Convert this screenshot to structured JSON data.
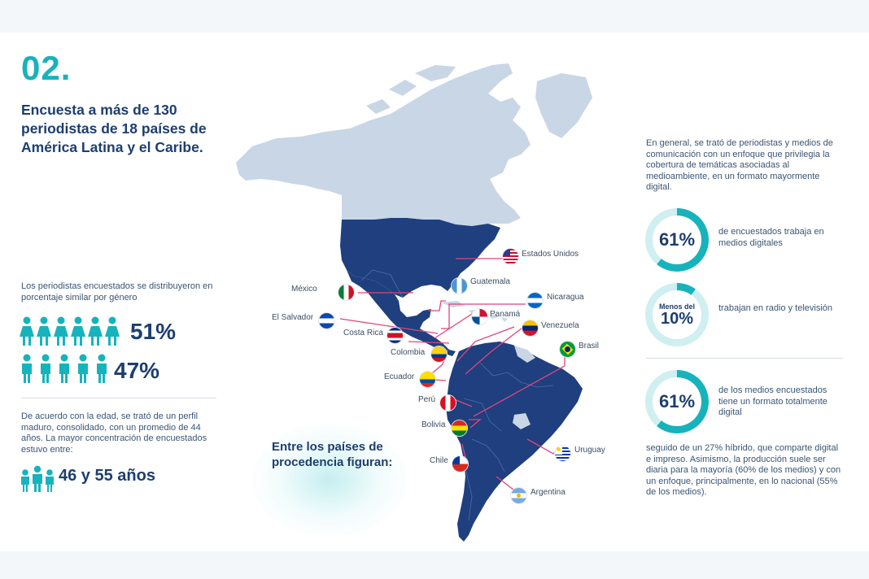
{
  "section_number": "02.",
  "title": "Encuesta a más de 130 periodistas de 18 países de América Latina y el Caribe.",
  "gender": {
    "intro": "Los periodistas encuestados se distribuyeron en porcentaje similar por género",
    "women_pct": "51%",
    "men_pct": "47%"
  },
  "age": {
    "intro": "De acuerdo con la edad, se trató de un perfil maduro, consolidado, con un promedio de 44 años.  La mayor concentración de encuestados estuvo entre:",
    "range": "46 y 55 años"
  },
  "map": {
    "caption": "Entre los países de procedencia figuran:",
    "countries": [
      {
        "name": "Estados Unidos",
        "flag": "us-flag"
      },
      {
        "name": "México",
        "flag": "mexico-flag"
      },
      {
        "name": "Guatemala",
        "flag": "guatemala-flag"
      },
      {
        "name": "Nicaragua",
        "flag": "nicaragua-flag"
      },
      {
        "name": "El Salvador",
        "flag": "el-salvador-flag"
      },
      {
        "name": "Panamá",
        "flag": "panama-flag"
      },
      {
        "name": "Costa Rica",
        "flag": "costa-rica-flag"
      },
      {
        "name": "Venezuela",
        "flag": "venezuela-flag"
      },
      {
        "name": "Colombia",
        "flag": "colombia-flag"
      },
      {
        "name": "Brasil",
        "flag": "brazil-flag"
      },
      {
        "name": "Ecuador",
        "flag": "ecuador-flag"
      },
      {
        "name": "Perú",
        "flag": "peru-flag"
      },
      {
        "name": "Bolivia",
        "flag": "bolivia-flag"
      },
      {
        "name": "Uruguay",
        "flag": "uruguay-flag"
      },
      {
        "name": "Chile",
        "flag": "chile-flag"
      },
      {
        "name": "Argentina",
        "flag": "argentina-flag"
      }
    ]
  },
  "right": {
    "intro": "En general, se trató de periodistas y medios de comunicación con un enfoque que privilegia la cobertura de temáticas asociadas al medioambiente, en un formato mayormente digital.",
    "stat1": {
      "value": "61%",
      "fraction": 0.61,
      "text": "de encuestados trabaja en medios digitales"
    },
    "stat2": {
      "prefix": "Menos del",
      "value": "10%",
      "fraction": 0.1,
      "text": "trabajan en radio y televisión"
    },
    "stat3": {
      "value": "61%",
      "fraction": 0.61,
      "text": "de los medios encuestados tiene un formato totalmente digital"
    },
    "outro": "seguido de un 27% híbrido, que comparte digital e impreso. Asimismo, la producción suele ser diaria para la mayoría (60% de los medios) y con un enfoque, principalmente, en lo nacional (55% de los medios)."
  },
  "colors": {
    "accent": "#17b3bd",
    "navy": "#1d3e6e",
    "map_highlight": "#1f3f7f",
    "map_other": "#c8d6e6",
    "arrow": "#e0457b"
  }
}
